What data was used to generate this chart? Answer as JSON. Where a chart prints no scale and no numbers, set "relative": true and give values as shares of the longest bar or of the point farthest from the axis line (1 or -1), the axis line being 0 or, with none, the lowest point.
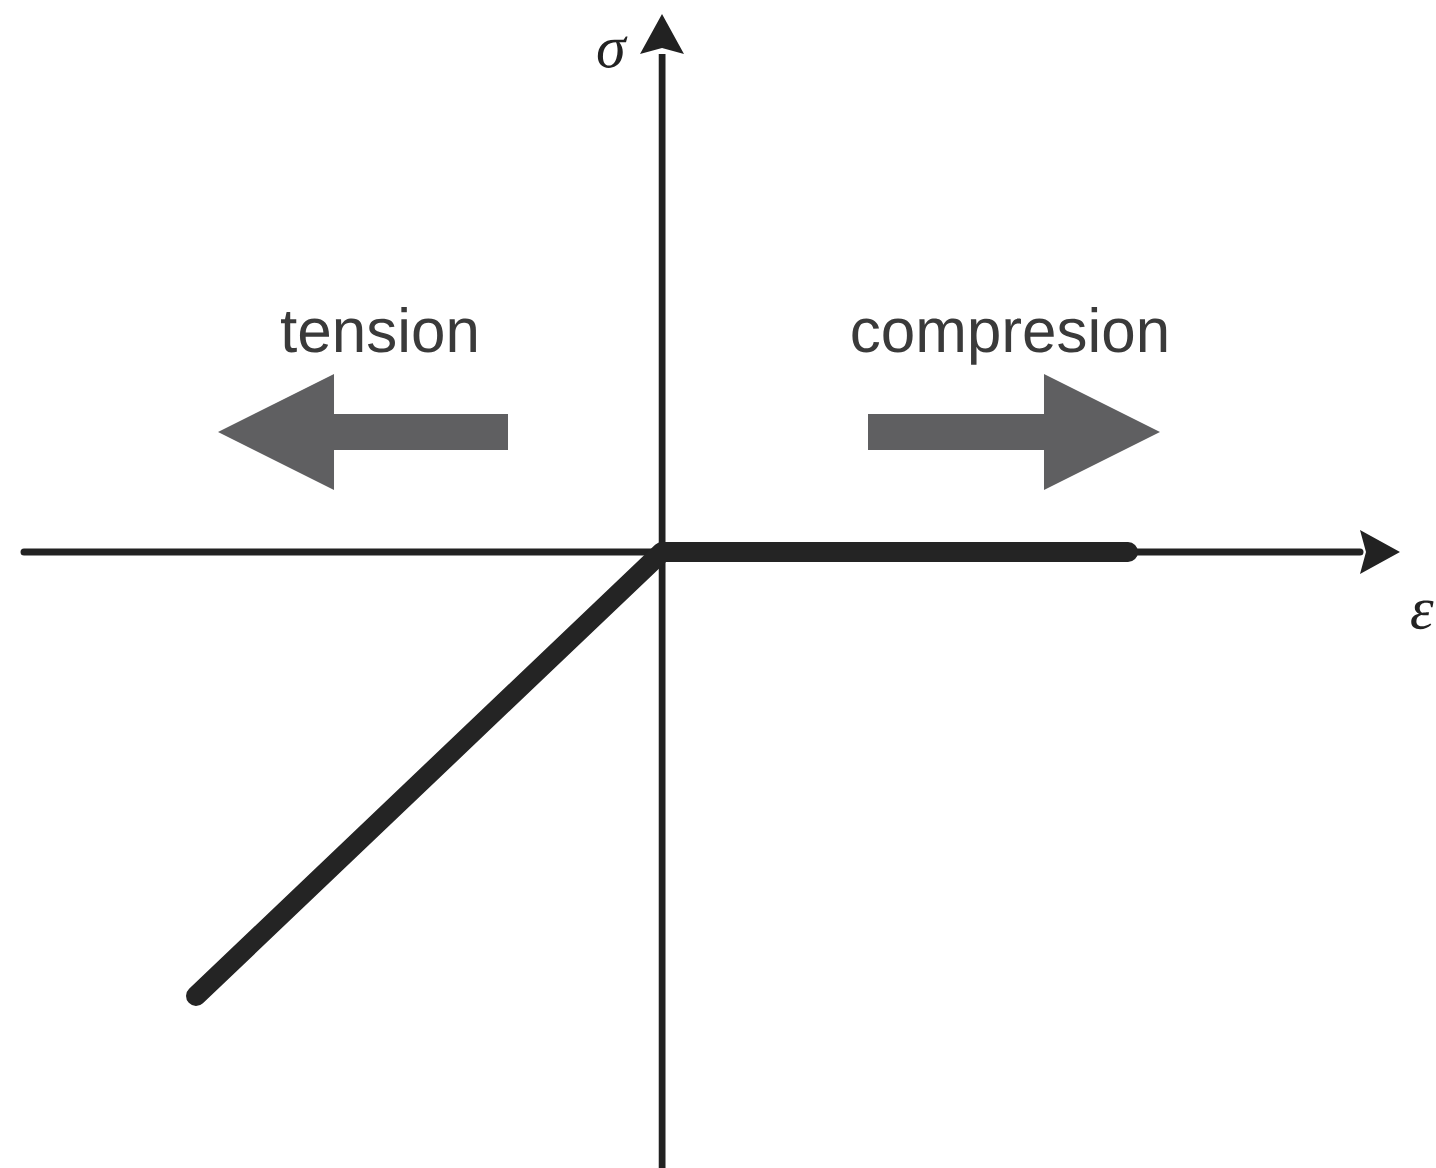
{
  "chart_data": {
    "type": "line",
    "xlabel": "ε",
    "annotations": [
      "σ",
      "tension",
      "compresion"
    ],
    "categories": [
      null,
      null,
      null
    ],
    "values": [
      -1,
      0,
      0
    ],
    "color": "#242424",
    "relative": true
  }
}
